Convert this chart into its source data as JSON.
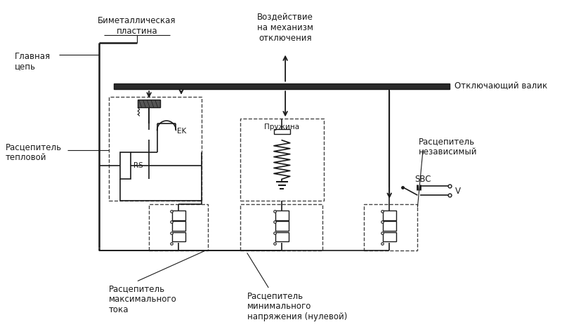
{
  "bg_color": "#ffffff",
  "line_color": "#1a1a1a",
  "labels": {
    "glavnaya_tsep": "Главная\nцепь",
    "bimetallicheskaya": "Биметаллическая\nпластина",
    "vozdeystvie": "Воздействие\nна механизм\nотключения",
    "otklyuchayushchiy_valik": "Отключающий валик",
    "pruzhina": "Пружина",
    "rascepitel_teplovoy": "Расцепитель\nтепловой",
    "rascepitel_nezavisimyy": "Расцепитель\nнезависимый",
    "rascepitel_maksimalnogo": "Расцепитель\nмаксимального\nтока",
    "rascepitel_minimalnogo": "Расцепитель\nминимального\nнапряжения (нулевой)",
    "EK": "EK",
    "RS": "RS",
    "SBC": "SBC",
    "V": "V"
  },
  "font_size_label": 8.5,
  "font_size_small": 7.5
}
